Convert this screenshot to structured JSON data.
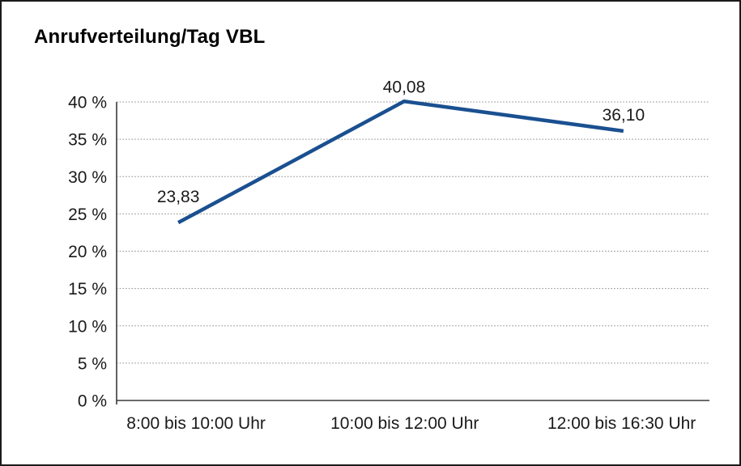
{
  "chart_data": {
    "type": "line",
    "title": "Anrufverteilung/Tag VBL",
    "categories": [
      "8:00 bis 10:00 Uhr",
      "10:00 bis 12:00 Uhr",
      "12:00 bis 16:30 Uhr"
    ],
    "series": [
      {
        "name": "Anrufverteilung/Tag VBL",
        "values": [
          23.83,
          40.08,
          36.1
        ]
      }
    ],
    "data_labels": [
      "23,83",
      "40,08",
      "36,10"
    ],
    "ytick_labels": [
      "0 %",
      "5 %",
      "10 %",
      "15 %",
      "20 %",
      "25 %",
      "30 %",
      "35 %",
      "40 %"
    ],
    "ylim": [
      0,
      40
    ],
    "ytick_step": 5,
    "xlabel": "",
    "ylabel": "",
    "grid": "horizontal-dotted",
    "legend": "none",
    "line_color": "#1a5090",
    "axis_color": "#3a3a3a",
    "grid_color": "#878787",
    "text_color": "#1a1a1a"
  }
}
